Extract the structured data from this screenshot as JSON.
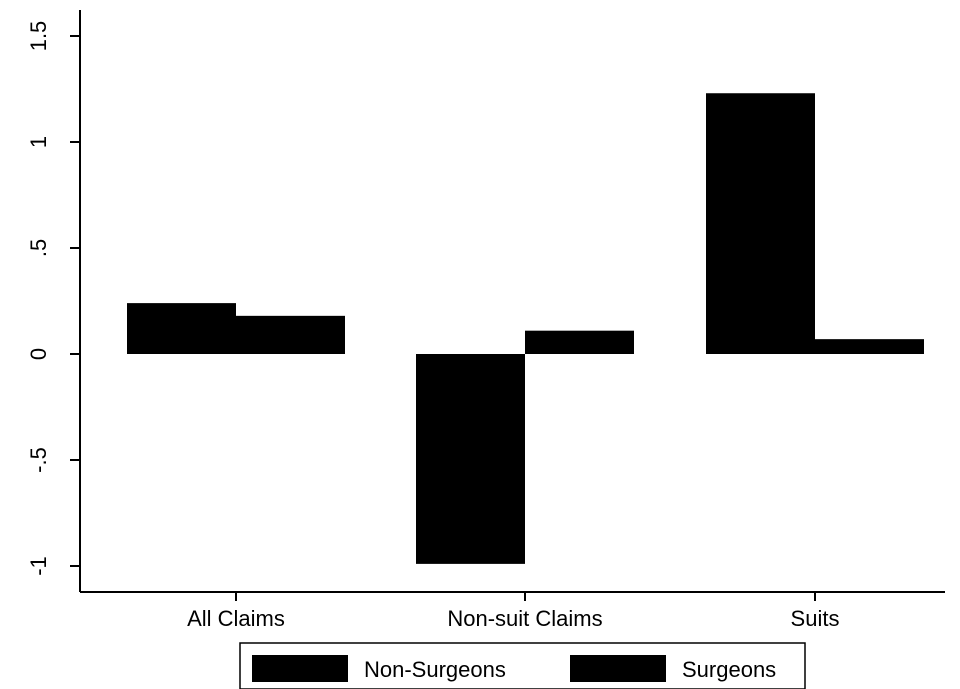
{
  "chart_data": {
    "type": "bar",
    "title": "",
    "xlabel": "",
    "ylabel": "",
    "categories": [
      "All Claims",
      "Non-suit Claims",
      "Suits"
    ],
    "series": [
      {
        "name": "Non-Surgeons",
        "values": [
          0.24,
          -0.99,
          1.23
        ],
        "color": "#000000"
      },
      {
        "name": "Surgeons",
        "values": [
          0.18,
          0.11,
          0.07
        ],
        "color": "#000000"
      }
    ],
    "ylim": [
      -1.1,
      1.62
    ],
    "yticks": [
      -1,
      -0.5,
      0,
      0.5,
      1,
      1.5
    ],
    "ytick_labels": [
      "-1",
      "-.5",
      "0",
      ".5",
      "1",
      "1.5"
    ],
    "grid": false,
    "legend_position": "bottom"
  }
}
